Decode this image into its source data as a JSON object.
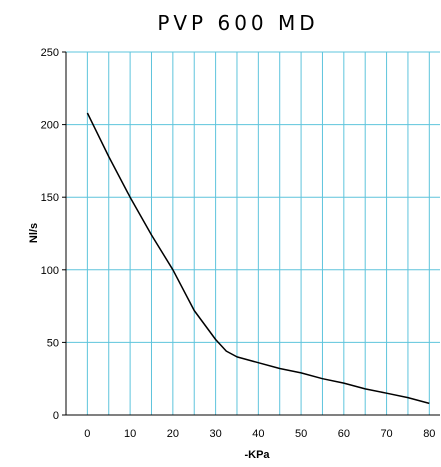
{
  "chart_data": {
    "type": "line",
    "title": "PVP 600 MD",
    "xlabel": "-KPa",
    "ylabel": "Nl/s",
    "xlim": [
      -5,
      82.5
    ],
    "ylim": [
      0,
      250
    ],
    "x_ticks": [
      0,
      10,
      20,
      30,
      40,
      50,
      60,
      70,
      80
    ],
    "y_ticks": [
      0,
      50,
      100,
      150,
      200,
      250
    ],
    "x_grid_step": 5,
    "y_grid_step": 50,
    "grid": true,
    "colors": {
      "grid": "#5ec4dc",
      "line": "#000000",
      "axis": "#000000"
    },
    "series": [
      {
        "x": [
          0,
          5,
          10,
          15,
          20,
          25,
          30,
          32.5,
          35,
          40,
          45,
          50,
          55,
          60,
          65,
          70,
          75,
          80
        ],
        "y": [
          208,
          178,
          150,
          124,
          100,
          72,
          52,
          44,
          40,
          36,
          32,
          29,
          25,
          22,
          18,
          15,
          12,
          8
        ]
      }
    ]
  }
}
